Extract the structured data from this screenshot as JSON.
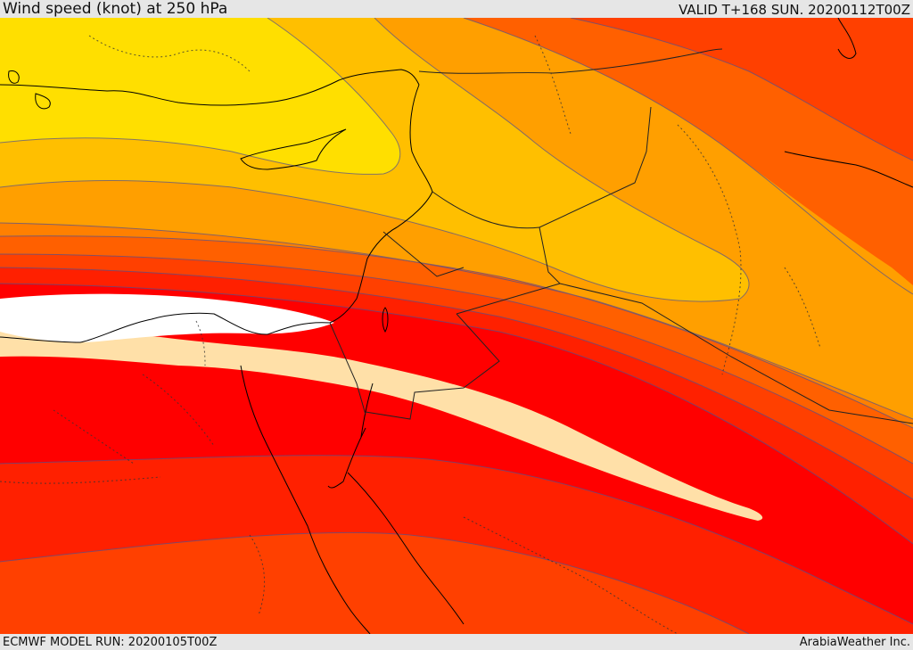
{
  "header": {
    "title": "Wind speed (knot) at 250 hPa",
    "valid": "VALID T+168 SUN. 20200112T00Z"
  },
  "footer": {
    "model_run": "ECMWF MODEL RUN: 20200105T00Z",
    "credit": "ArabiaWeather Inc."
  },
  "map": {
    "variable": "wind speed",
    "units": "knot",
    "level": "250 hPa",
    "band_colors": [
      "#ffdf00",
      "#ffbf00",
      "#ff9f00",
      "#ff8000",
      "#ff6000",
      "#ff4000",
      "#ff2000",
      "#ff0000",
      "#ffe0a8",
      "#ffffff"
    ],
    "line_colors": {
      "coastline": "#000000",
      "border": "#222222",
      "contour": "#505090"
    }
  }
}
